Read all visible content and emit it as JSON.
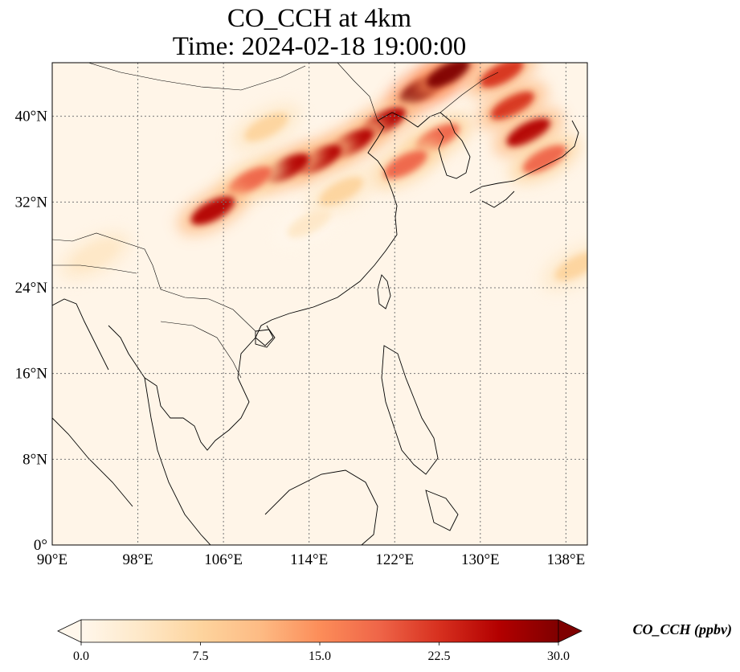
{
  "title": {
    "line1": "CO_CCH at 4km",
    "line2": "Time: 2024-02-18 19:00:00"
  },
  "map": {
    "lon_range": [
      90,
      140
    ],
    "lat_range": [
      0,
      45
    ],
    "x_ticks": [
      90,
      98,
      106,
      114,
      122,
      130,
      138
    ],
    "y_ticks": [
      0,
      8,
      16,
      24,
      32,
      40
    ],
    "x_tick_labels": [
      "90°E",
      "98°E",
      "106°E",
      "114°E",
      "122°E",
      "130°E",
      "138°E"
    ],
    "y_tick_labels": [
      "0°",
      "8°N",
      "16°N",
      "24°N",
      "32°N",
      "40°N"
    ],
    "gridlines": true,
    "background_color": "#fff5e8"
  },
  "colorbar": {
    "label": "CO_CCH (ppbv)",
    "min": 0,
    "max": 30,
    "ticks": [
      0,
      7.5,
      15,
      22.5,
      30
    ],
    "tick_labels": [
      "0.0",
      "7.5",
      "15.0",
      "22.5",
      "30.0"
    ],
    "colormap": "OrRd",
    "extend": "both",
    "colors": [
      "#fff7ec",
      "#fee8c8",
      "#fdd49e",
      "#fdbb84",
      "#fc8d59",
      "#ef6548",
      "#d7301f",
      "#b30000",
      "#7f0000"
    ]
  },
  "plumes": [
    {
      "lon": 124.5,
      "lat": 42.5,
      "value": 30
    },
    {
      "lon": 127.0,
      "lat": 44.0,
      "value": 30
    },
    {
      "lon": 121.0,
      "lat": 39.5,
      "value": 28
    },
    {
      "lon": 118.0,
      "lat": 37.5,
      "value": 27
    },
    {
      "lon": 115.0,
      "lat": 36.0,
      "value": 26
    },
    {
      "lon": 112.0,
      "lat": 35.2,
      "value": 25
    },
    {
      "lon": 108.5,
      "lat": 34.0,
      "value": 18
    },
    {
      "lon": 105.0,
      "lat": 31.2,
      "value": 27
    },
    {
      "lon": 126.0,
      "lat": 38.0,
      "value": 20
    },
    {
      "lon": 123.0,
      "lat": 35.5,
      "value": 18
    },
    {
      "lon": 133.0,
      "lat": 41.0,
      "value": 24
    },
    {
      "lon": 134.5,
      "lat": 38.5,
      "value": 26
    },
    {
      "lon": 136.0,
      "lat": 36.0,
      "value": 18
    },
    {
      "lon": 132.0,
      "lat": 44.0,
      "value": 22
    },
    {
      "lon": 110.0,
      "lat": 39.0,
      "value": 6
    },
    {
      "lon": 114.0,
      "lat": 30.0,
      "value": 4
    },
    {
      "lon": 117.0,
      "lat": 33.0,
      "value": 8
    },
    {
      "lon": 139.0,
      "lat": 26.0,
      "value": 8
    },
    {
      "lon": 94.0,
      "lat": 27.0,
      "value": 5
    }
  ]
}
